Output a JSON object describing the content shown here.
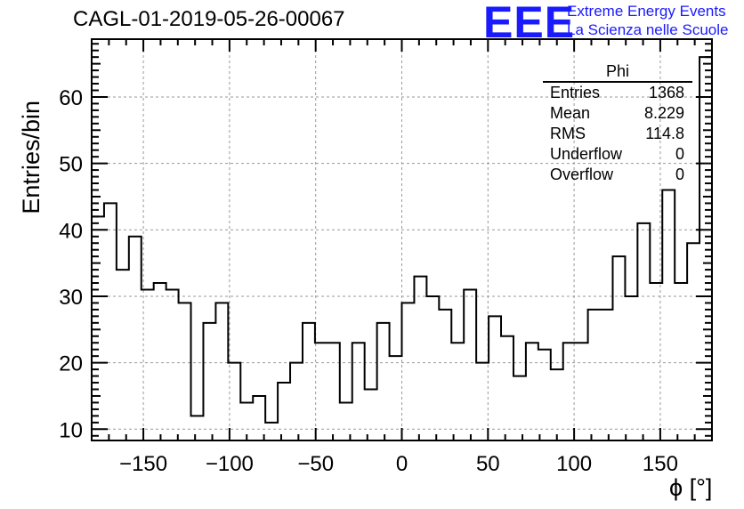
{
  "header": {
    "run_title": "CAGL-01-2019-05-26-00067",
    "logo_text": "EEE",
    "logo_line1": "Extreme Energy Events",
    "logo_line2": "La Scienza nelle Scuole",
    "logo_color": "#1a1aff"
  },
  "stats_box": {
    "title": "Phi",
    "rows": [
      {
        "label": "Entries",
        "value": "1368"
      },
      {
        "label": "Mean",
        "value": "8.229"
      },
      {
        "label": "RMS",
        "value": "114.8"
      },
      {
        "label": "Underflow",
        "value": "0"
      },
      {
        "label": "Overflow",
        "value": "0"
      }
    ]
  },
  "chart_data": {
    "type": "bar",
    "style": "step-histogram",
    "title": "CAGL-01-2019-05-26-00067",
    "xlabel": "ϕ [°]",
    "ylabel": "Entries/bin",
    "xlim": [
      -180,
      180
    ],
    "ylim": [
      8.3,
      68.7
    ],
    "bin_width": 7.2,
    "x_ticks": [
      -150,
      -100,
      -50,
      0,
      50,
      100,
      150
    ],
    "x_tick_labels": [
      "−150",
      "−100",
      "−50",
      "0",
      "50",
      "100",
      "150"
    ],
    "y_ticks": [
      10,
      20,
      30,
      40,
      50,
      60
    ],
    "y_tick_labels": [
      "10",
      "20",
      "30",
      "40",
      "50",
      "60"
    ],
    "grid": true,
    "line_color": "#000000",
    "grid_color": "#999999",
    "values": [
      42,
      44,
      34,
      39,
      31,
      32,
      31,
      29,
      12,
      26,
      29,
      20,
      14,
      15,
      11,
      17,
      20,
      26,
      23,
      23,
      14,
      23,
      16,
      26,
      21,
      29,
      33,
      30,
      28,
      23,
      31,
      20,
      27,
      24,
      18,
      23,
      22,
      19,
      23,
      23,
      28,
      28,
      36,
      30,
      41,
      32,
      46,
      32,
      38,
      66
    ]
  }
}
